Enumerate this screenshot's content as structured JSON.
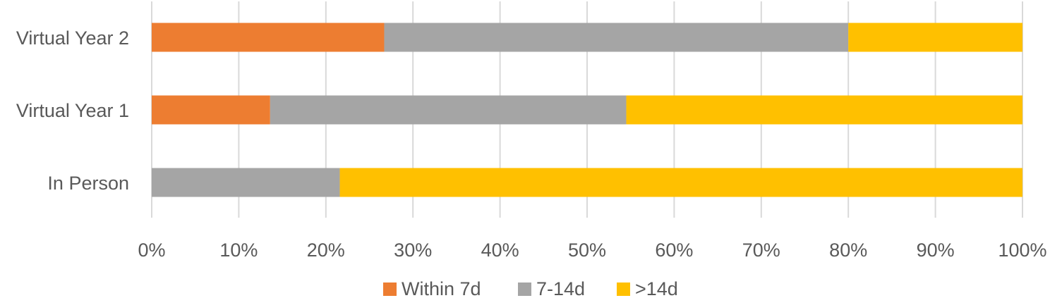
{
  "chart_data": {
    "type": "bar",
    "orientation": "horizontal",
    "stacked": "100%",
    "categories": [
      "Virtual Year 2",
      "Virtual Year 1",
      "In Person"
    ],
    "series": [
      {
        "name": "Within 7d",
        "color": "#ED7D31",
        "values": [
          26.7,
          13.6,
          0
        ]
      },
      {
        "name": "7-14d",
        "color": "#A5A5A5",
        "values": [
          53.3,
          40.9,
          21.6
        ]
      },
      {
        "name": ">14d",
        "color": "#FFC000",
        "values": [
          20.0,
          45.5,
          78.4
        ]
      }
    ],
    "x_ticks": [
      "0%",
      "10%",
      "20%",
      "30%",
      "40%",
      "50%",
      "60%",
      "70%",
      "80%",
      "90%",
      "100%"
    ],
    "xlim": [
      0,
      100
    ],
    "grid": true,
    "legend_position": "bottom"
  }
}
